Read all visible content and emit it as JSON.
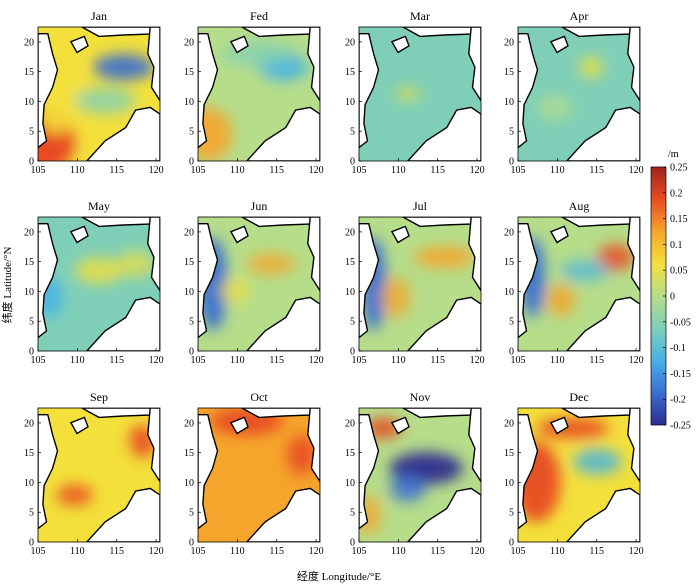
{
  "figure": {
    "xlabel": "经度 Longitude/°E",
    "ylabel": "纬度 Latitude/°N",
    "colorbar_unit": "/m",
    "colorbar_range": [
      -0.25,
      0.25
    ],
    "colorbar_ticks": [
      "0.25",
      "0.2",
      "0.15",
      "0.1",
      "0.05",
      "0",
      "-0.05",
      "-0.1",
      "-0.15",
      "-0.2",
      "-0.25"
    ],
    "colormap": [
      "#2e2b8f",
      "#3a6fd1",
      "#46b1e6",
      "#7fcfb8",
      "#b6dd8a",
      "#f3e03b",
      "#f5a52b",
      "#e84c22",
      "#a0251b"
    ],
    "land_color": "#ffffff",
    "coast_color": "#000000"
  },
  "chart_data": [
    {
      "type": "heatmap",
      "title": "Jan",
      "x_ticks": [
        105,
        110,
        115,
        120
      ],
      "y_ticks": [
        0,
        5,
        10,
        15,
        20
      ],
      "xlim": [
        105,
        120.5
      ],
      "ylim": [
        0,
        22.5
      ]
    },
    {
      "type": "heatmap",
      "title": "Fed",
      "x_ticks": [
        105,
        110,
        115,
        120
      ],
      "y_ticks": [
        0,
        5,
        10,
        15,
        20
      ],
      "xlim": [
        105,
        120.5
      ],
      "ylim": [
        0,
        22.5
      ]
    },
    {
      "type": "heatmap",
      "title": "Mar",
      "x_ticks": [
        105,
        110,
        115,
        120
      ],
      "y_ticks": [
        0,
        5,
        10,
        15,
        20
      ],
      "xlim": [
        105,
        120.5
      ],
      "ylim": [
        0,
        22.5
      ]
    },
    {
      "type": "heatmap",
      "title": "Apr",
      "x_ticks": [
        105,
        110,
        115,
        120
      ],
      "y_ticks": [
        0,
        5,
        10,
        15,
        20
      ],
      "xlim": [
        105,
        120.5
      ],
      "ylim": [
        0,
        22.5
      ]
    },
    {
      "type": "heatmap",
      "title": "May",
      "x_ticks": [
        105,
        110,
        115,
        120
      ],
      "y_ticks": [
        0,
        5,
        10,
        15,
        20
      ],
      "xlim": [
        105,
        120.5
      ],
      "ylim": [
        0,
        22.5
      ]
    },
    {
      "type": "heatmap",
      "title": "Jun",
      "x_ticks": [
        105,
        110,
        115,
        120
      ],
      "y_ticks": [
        0,
        5,
        10,
        15,
        20
      ],
      "xlim": [
        105,
        120.5
      ],
      "ylim": [
        0,
        22.5
      ]
    },
    {
      "type": "heatmap",
      "title": "Jul",
      "x_ticks": [
        105,
        110,
        115,
        120
      ],
      "y_ticks": [
        0,
        5,
        10,
        15,
        20
      ],
      "xlim": [
        105,
        120.5
      ],
      "ylim": [
        0,
        22.5
      ]
    },
    {
      "type": "heatmap",
      "title": "Aug",
      "x_ticks": [
        105,
        110,
        115,
        120
      ],
      "y_ticks": [
        0,
        5,
        10,
        15,
        20
      ],
      "xlim": [
        105,
        120.5
      ],
      "ylim": [
        0,
        22.5
      ]
    },
    {
      "type": "heatmap",
      "title": "Sep",
      "x_ticks": [
        105,
        110,
        115,
        120
      ],
      "y_ticks": [
        0,
        5,
        10,
        15,
        20
      ],
      "xlim": [
        105,
        120.5
      ],
      "ylim": [
        0,
        22.5
      ]
    },
    {
      "type": "heatmap",
      "title": "Oct",
      "x_ticks": [
        105,
        110,
        115,
        120
      ],
      "y_ticks": [
        0,
        5,
        10,
        15,
        20
      ],
      "xlim": [
        105,
        120.5
      ],
      "ylim": [
        0,
        22.5
      ]
    },
    {
      "type": "heatmap",
      "title": "Nov",
      "x_ticks": [
        105,
        110,
        115,
        120
      ],
      "y_ticks": [
        0,
        5,
        10,
        15,
        20
      ],
      "xlim": [
        105,
        120.5
      ],
      "ylim": [
        0,
        22.5
      ]
    },
    {
      "type": "heatmap",
      "title": "Dec",
      "x_ticks": [
        105,
        110,
        115,
        120
      ],
      "y_ticks": [
        0,
        5,
        10,
        15,
        20
      ],
      "xlim": [
        105,
        120.5
      ],
      "ylim": [
        0,
        22.5
      ]
    }
  ]
}
